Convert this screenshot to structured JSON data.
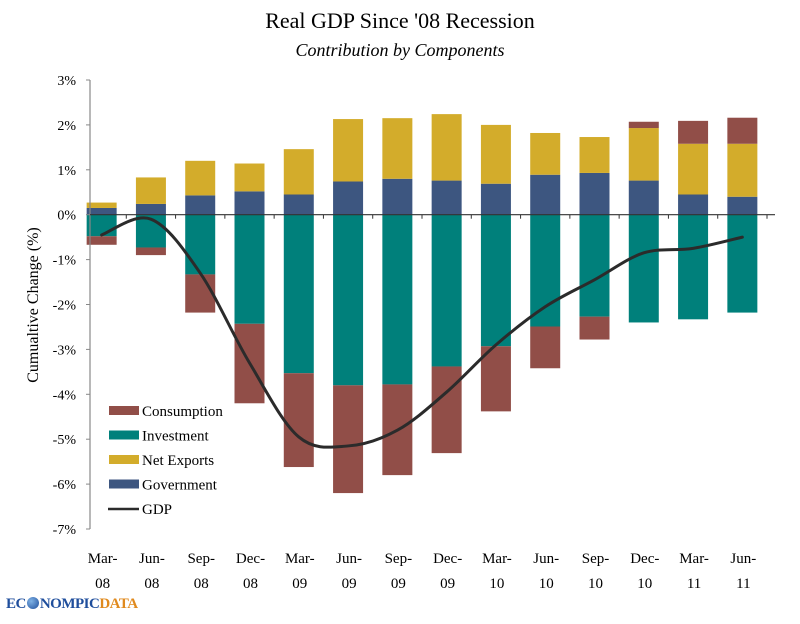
{
  "chart_data": {
    "type": "bar",
    "stacked": true,
    "title": "Real GDP Since '08 Recession",
    "subtitle": "Contribution by Components",
    "xlabel": "",
    "ylabel": "Cumualtive Change (%)",
    "ylim": [
      -7,
      3
    ],
    "yticks": [
      3,
      2,
      1,
      0,
      -1,
      -2,
      -3,
      -4,
      -5,
      -6,
      -7
    ],
    "ytick_labels": [
      "3%",
      "2%",
      "1%",
      "0%",
      "-1%",
      "-2%",
      "-3%",
      "-4%",
      "-5%",
      "-6%",
      "-7%"
    ],
    "grid": false,
    "legend_position": "bottom-left",
    "categories": [
      "Mar-08",
      "Jun-08",
      "Sep-08",
      "Dec-08",
      "Mar-09",
      "Jun-09",
      "Sep-09",
      "Dec-09",
      "Mar-10",
      "Jun-10",
      "Sep-10",
      "Dec-10",
      "Mar-11",
      "Jun-11"
    ],
    "category_lines": [
      [
        "Mar-",
        "08"
      ],
      [
        "Jun-",
        "08"
      ],
      [
        "Sep-",
        "08"
      ],
      [
        "Dec-",
        "08"
      ],
      [
        "Mar-",
        "09"
      ],
      [
        "Jun-",
        "09"
      ],
      [
        "Sep-",
        "09"
      ],
      [
        "Dec-",
        "09"
      ],
      [
        "Mar-",
        "10"
      ],
      [
        "Jun-",
        "10"
      ],
      [
        "Sep-",
        "10"
      ],
      [
        "Dec-",
        "10"
      ],
      [
        "Mar-",
        "11"
      ],
      [
        "Jun-",
        "11"
      ]
    ],
    "series": [
      {
        "name": "Consumption",
        "kind": "bar",
        "color": "#914e48",
        "values": [
          -0.19,
          -0.17,
          -0.85,
          -1.77,
          -2.09,
          -2.4,
          -2.02,
          -1.93,
          -1.45,
          -0.93,
          -0.51,
          0.14,
          0.51,
          0.58
        ]
      },
      {
        "name": "Investment",
        "kind": "bar",
        "color": "#00807b",
        "values": [
          -0.48,
          -0.73,
          -1.33,
          -2.43,
          -3.53,
          -3.8,
          -3.78,
          -3.38,
          -2.93,
          -2.49,
          -2.27,
          -2.4,
          -2.33,
          -2.18
        ]
      },
      {
        "name": "Net Exports",
        "kind": "bar",
        "color": "#d3ac2b",
        "values": [
          0.12,
          0.59,
          0.77,
          0.62,
          1.01,
          1.39,
          1.35,
          1.48,
          1.31,
          0.93,
          0.8,
          1.17,
          1.13,
          1.18
        ]
      },
      {
        "name": "Government",
        "kind": "bar",
        "color": "#3d5680",
        "values": [
          0.15,
          0.24,
          0.43,
          0.52,
          0.45,
          0.74,
          0.8,
          0.76,
          0.69,
          0.89,
          0.93,
          0.76,
          0.45,
          0.4
        ]
      },
      {
        "name": "GDP",
        "kind": "line",
        "color": "#2b2b2b",
        "values": [
          -0.45,
          -0.1,
          -1.3,
          -3.3,
          -4.95,
          -5.15,
          -4.8,
          -3.95,
          -2.9,
          -2.05,
          -1.45,
          -0.85,
          -0.75,
          -0.5
        ]
      }
    ]
  },
  "legend": [
    {
      "label": "Consumption",
      "swatch": "bar",
      "color": "#914e48"
    },
    {
      "label": "Investment",
      "swatch": "bar",
      "color": "#00807b"
    },
    {
      "label": "Net Exports",
      "swatch": "bar",
      "color": "#d3ac2b"
    },
    {
      "label": "Government",
      "swatch": "bar",
      "color": "#3d5680"
    },
    {
      "label": "GDP",
      "swatch": "line",
      "color": "#2b2b2b"
    }
  ],
  "logo": {
    "part1": "EC",
    "part2": "NOMPIC",
    "part3": "DATA"
  }
}
